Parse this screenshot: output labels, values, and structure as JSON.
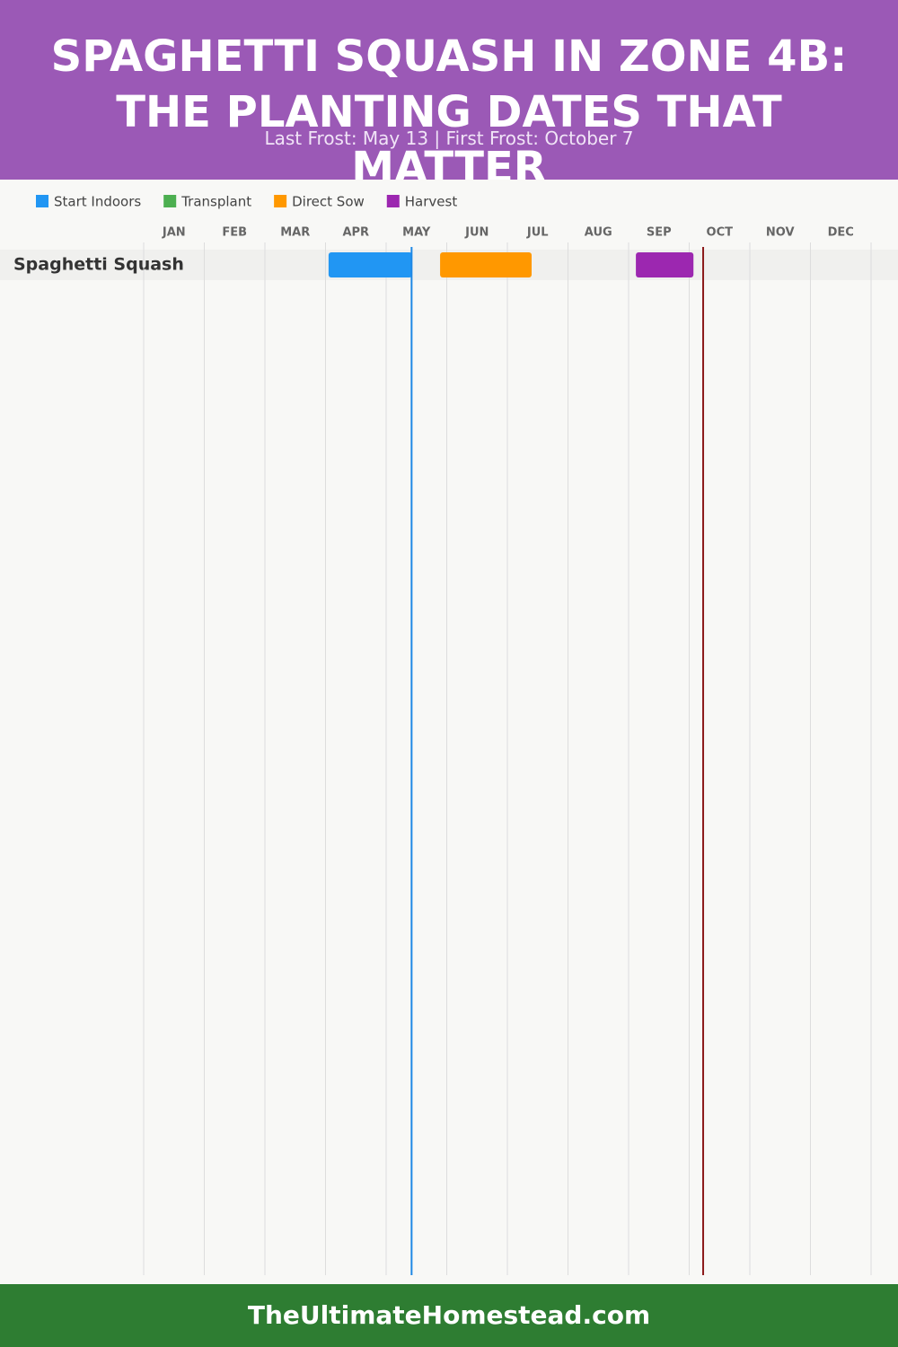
{
  "chart_data": {
    "type": "gantt",
    "title": "SPAGHETTI SQUASH IN ZONE 4B: THE PLANTING DATES THAT MATTER",
    "subtitle": "Last Frost: May 13 | First Frost: October 7",
    "footer": "TheUltimateHomestead.com",
    "categories": [
      "JAN",
      "FEB",
      "MAR",
      "APR",
      "MAY",
      "JUN",
      "JUL",
      "AUG",
      "SEP",
      "OCT",
      "NOV",
      "DEC"
    ],
    "xlim": [
      0,
      12
    ],
    "xticks": [
      0,
      1,
      2,
      3,
      4,
      5,
      6,
      7,
      8,
      9,
      10,
      11,
      12
    ],
    "grid": true,
    "rows": [
      "Spaghetti Squash"
    ],
    "series": [
      {
        "name": "Start Indoors",
        "color": "#2196f3",
        "start": [
          3.05
        ],
        "end": [
          4.43
        ]
      },
      {
        "name": "Transplant",
        "color": "#4caf50",
        "start": [
          null
        ],
        "end": [
          null
        ]
      },
      {
        "name": "Direct Sow",
        "color": "#ff9800",
        "start": [
          4.89
        ],
        "end": [
          6.4
        ]
      },
      {
        "name": "Harvest",
        "color": "#9c27b0",
        "start": [
          8.12
        ],
        "end": [
          9.07
        ]
      }
    ],
    "frost_lines": [
      {
        "value": 4.42,
        "color": "#1e88e5"
      },
      {
        "value": 9.23,
        "color": "#8b1a1a"
      }
    ]
  }
}
